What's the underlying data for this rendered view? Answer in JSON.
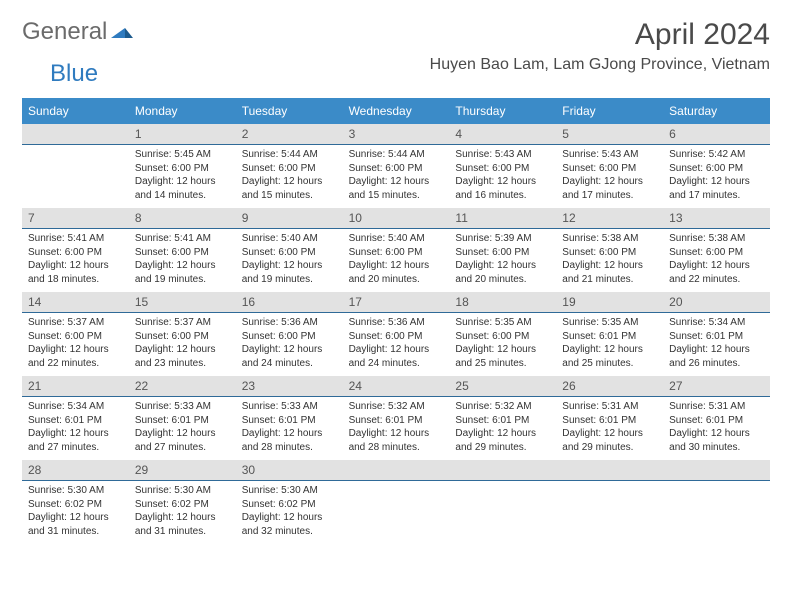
{
  "logo": {
    "general": "General",
    "blue": "Blue"
  },
  "header": {
    "month_title": "April 2024",
    "location": "Huyen Bao Lam, Lam GJong Province, Vietnam"
  },
  "colors": {
    "header_bg": "#3b8bc8",
    "daynum_bg": "#e2e2e2",
    "daynum_border": "#2f6a98",
    "text": "#333333",
    "title_text": "#4a4a4a",
    "logo_gray": "#6b6b6b",
    "logo_blue": "#2f7bbf"
  },
  "day_names": [
    "Sunday",
    "Monday",
    "Tuesday",
    "Wednesday",
    "Thursday",
    "Friday",
    "Saturday"
  ],
  "weeks": [
    {
      "days": [
        {
          "num": "",
          "sunrise": "",
          "sunset": "",
          "daylight": ""
        },
        {
          "num": "1",
          "sunrise": "Sunrise: 5:45 AM",
          "sunset": "Sunset: 6:00 PM",
          "daylight": "Daylight: 12 hours and 14 minutes."
        },
        {
          "num": "2",
          "sunrise": "Sunrise: 5:44 AM",
          "sunset": "Sunset: 6:00 PM",
          "daylight": "Daylight: 12 hours and 15 minutes."
        },
        {
          "num": "3",
          "sunrise": "Sunrise: 5:44 AM",
          "sunset": "Sunset: 6:00 PM",
          "daylight": "Daylight: 12 hours and 15 minutes."
        },
        {
          "num": "4",
          "sunrise": "Sunrise: 5:43 AM",
          "sunset": "Sunset: 6:00 PM",
          "daylight": "Daylight: 12 hours and 16 minutes."
        },
        {
          "num": "5",
          "sunrise": "Sunrise: 5:43 AM",
          "sunset": "Sunset: 6:00 PM",
          "daylight": "Daylight: 12 hours and 17 minutes."
        },
        {
          "num": "6",
          "sunrise": "Sunrise: 5:42 AM",
          "sunset": "Sunset: 6:00 PM",
          "daylight": "Daylight: 12 hours and 17 minutes."
        }
      ]
    },
    {
      "days": [
        {
          "num": "7",
          "sunrise": "Sunrise: 5:41 AM",
          "sunset": "Sunset: 6:00 PM",
          "daylight": "Daylight: 12 hours and 18 minutes."
        },
        {
          "num": "8",
          "sunrise": "Sunrise: 5:41 AM",
          "sunset": "Sunset: 6:00 PM",
          "daylight": "Daylight: 12 hours and 19 minutes."
        },
        {
          "num": "9",
          "sunrise": "Sunrise: 5:40 AM",
          "sunset": "Sunset: 6:00 PM",
          "daylight": "Daylight: 12 hours and 19 minutes."
        },
        {
          "num": "10",
          "sunrise": "Sunrise: 5:40 AM",
          "sunset": "Sunset: 6:00 PM",
          "daylight": "Daylight: 12 hours and 20 minutes."
        },
        {
          "num": "11",
          "sunrise": "Sunrise: 5:39 AM",
          "sunset": "Sunset: 6:00 PM",
          "daylight": "Daylight: 12 hours and 20 minutes."
        },
        {
          "num": "12",
          "sunrise": "Sunrise: 5:38 AM",
          "sunset": "Sunset: 6:00 PM",
          "daylight": "Daylight: 12 hours and 21 minutes."
        },
        {
          "num": "13",
          "sunrise": "Sunrise: 5:38 AM",
          "sunset": "Sunset: 6:00 PM",
          "daylight": "Daylight: 12 hours and 22 minutes."
        }
      ]
    },
    {
      "days": [
        {
          "num": "14",
          "sunrise": "Sunrise: 5:37 AM",
          "sunset": "Sunset: 6:00 PM",
          "daylight": "Daylight: 12 hours and 22 minutes."
        },
        {
          "num": "15",
          "sunrise": "Sunrise: 5:37 AM",
          "sunset": "Sunset: 6:00 PM",
          "daylight": "Daylight: 12 hours and 23 minutes."
        },
        {
          "num": "16",
          "sunrise": "Sunrise: 5:36 AM",
          "sunset": "Sunset: 6:00 PM",
          "daylight": "Daylight: 12 hours and 24 minutes."
        },
        {
          "num": "17",
          "sunrise": "Sunrise: 5:36 AM",
          "sunset": "Sunset: 6:00 PM",
          "daylight": "Daylight: 12 hours and 24 minutes."
        },
        {
          "num": "18",
          "sunrise": "Sunrise: 5:35 AM",
          "sunset": "Sunset: 6:00 PM",
          "daylight": "Daylight: 12 hours and 25 minutes."
        },
        {
          "num": "19",
          "sunrise": "Sunrise: 5:35 AM",
          "sunset": "Sunset: 6:01 PM",
          "daylight": "Daylight: 12 hours and 25 minutes."
        },
        {
          "num": "20",
          "sunrise": "Sunrise: 5:34 AM",
          "sunset": "Sunset: 6:01 PM",
          "daylight": "Daylight: 12 hours and 26 minutes."
        }
      ]
    },
    {
      "days": [
        {
          "num": "21",
          "sunrise": "Sunrise: 5:34 AM",
          "sunset": "Sunset: 6:01 PM",
          "daylight": "Daylight: 12 hours and 27 minutes."
        },
        {
          "num": "22",
          "sunrise": "Sunrise: 5:33 AM",
          "sunset": "Sunset: 6:01 PM",
          "daylight": "Daylight: 12 hours and 27 minutes."
        },
        {
          "num": "23",
          "sunrise": "Sunrise: 5:33 AM",
          "sunset": "Sunset: 6:01 PM",
          "daylight": "Daylight: 12 hours and 28 minutes."
        },
        {
          "num": "24",
          "sunrise": "Sunrise: 5:32 AM",
          "sunset": "Sunset: 6:01 PM",
          "daylight": "Daylight: 12 hours and 28 minutes."
        },
        {
          "num": "25",
          "sunrise": "Sunrise: 5:32 AM",
          "sunset": "Sunset: 6:01 PM",
          "daylight": "Daylight: 12 hours and 29 minutes."
        },
        {
          "num": "26",
          "sunrise": "Sunrise: 5:31 AM",
          "sunset": "Sunset: 6:01 PM",
          "daylight": "Daylight: 12 hours and 29 minutes."
        },
        {
          "num": "27",
          "sunrise": "Sunrise: 5:31 AM",
          "sunset": "Sunset: 6:01 PM",
          "daylight": "Daylight: 12 hours and 30 minutes."
        }
      ]
    },
    {
      "days": [
        {
          "num": "28",
          "sunrise": "Sunrise: 5:30 AM",
          "sunset": "Sunset: 6:02 PM",
          "daylight": "Daylight: 12 hours and 31 minutes."
        },
        {
          "num": "29",
          "sunrise": "Sunrise: 5:30 AM",
          "sunset": "Sunset: 6:02 PM",
          "daylight": "Daylight: 12 hours and 31 minutes."
        },
        {
          "num": "30",
          "sunrise": "Sunrise: 5:30 AM",
          "sunset": "Sunset: 6:02 PM",
          "daylight": "Daylight: 12 hours and 32 minutes."
        },
        {
          "num": "",
          "sunrise": "",
          "sunset": "",
          "daylight": ""
        },
        {
          "num": "",
          "sunrise": "",
          "sunset": "",
          "daylight": ""
        },
        {
          "num": "",
          "sunrise": "",
          "sunset": "",
          "daylight": ""
        },
        {
          "num": "",
          "sunrise": "",
          "sunset": "",
          "daylight": ""
        }
      ]
    }
  ]
}
